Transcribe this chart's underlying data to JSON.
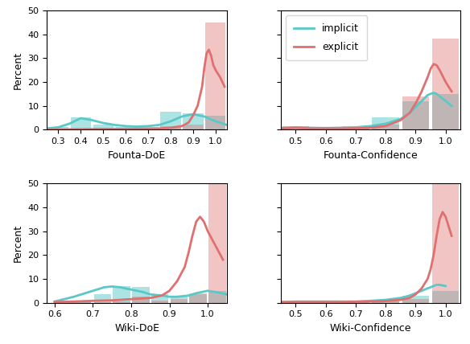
{
  "panels": [
    {
      "name": "Founta-DoE",
      "xlim": [
        0.25,
        1.05
      ],
      "xticks": [
        0.3,
        0.4,
        0.5,
        0.6,
        0.7,
        0.8,
        0.9,
        1.0
      ],
      "implicit_hist_edges": [
        0.25,
        0.35,
        0.45,
        0.55,
        0.65,
        0.75,
        0.85,
        0.95,
        1.05
      ],
      "implicit_hist_vals": [
        1.0,
        5.0,
        2.0,
        1.0,
        1.0,
        7.5,
        7.0,
        6.0
      ],
      "explicit_hist_edges": [
        0.25,
        0.35,
        0.45,
        0.55,
        0.65,
        0.75,
        0.85,
        0.95,
        1.05
      ],
      "explicit_hist_vals": [
        0.2,
        0.5,
        0.3,
        0.3,
        0.4,
        1.5,
        2.0,
        45.0
      ],
      "implicit_kde_x": [
        0.25,
        0.3,
        0.35,
        0.4,
        0.45,
        0.5,
        0.55,
        0.6,
        0.65,
        0.7,
        0.75,
        0.8,
        0.85,
        0.9,
        0.95,
        1.0,
        1.05
      ],
      "implicit_kde_y": [
        0.5,
        1.0,
        2.5,
        4.8,
        4.0,
        2.8,
        2.0,
        1.5,
        1.3,
        1.5,
        2.0,
        3.5,
        5.5,
        6.5,
        5.5,
        3.5,
        2.0
      ],
      "explicit_kde_x": [
        0.25,
        0.3,
        0.4,
        0.5,
        0.6,
        0.7,
        0.75,
        0.8,
        0.85,
        0.88,
        0.9,
        0.92,
        0.94,
        0.95,
        0.96,
        0.97,
        0.98,
        0.99,
        1.0,
        1.02,
        1.04
      ],
      "explicit_kde_y": [
        0.0,
        0.1,
        0.2,
        0.3,
        0.3,
        0.4,
        0.5,
        0.8,
        1.5,
        3.0,
        6.0,
        10.0,
        18.0,
        26.0,
        32.0,
        33.5,
        31.0,
        27.0,
        25.0,
        22.0,
        18.0
      ],
      "ylim": [
        0,
        50
      ],
      "yticks": [
        0,
        10,
        20,
        30,
        40,
        50
      ]
    },
    {
      "name": "Founta-Confidence",
      "xlim": [
        0.45,
        1.05
      ],
      "xticks": [
        0.5,
        0.6,
        0.7,
        0.8,
        0.9,
        1.0
      ],
      "implicit_hist_edges": [
        0.45,
        0.55,
        0.65,
        0.75,
        0.85,
        0.95,
        1.05
      ],
      "implicit_hist_vals": [
        1.5,
        1.0,
        1.5,
        5.0,
        12.0,
        15.0
      ],
      "explicit_hist_edges": [
        0.45,
        0.55,
        0.65,
        0.75,
        0.85,
        0.95,
        1.05
      ],
      "explicit_hist_vals": [
        1.5,
        0.8,
        1.0,
        2.0,
        14.0,
        38.0
      ],
      "implicit_kde_x": [
        0.45,
        0.5,
        0.55,
        0.6,
        0.65,
        0.7,
        0.75,
        0.8,
        0.85,
        0.88,
        0.9,
        0.92,
        0.94,
        0.96,
        0.97,
        0.98,
        1.0,
        1.02
      ],
      "implicit_kde_y": [
        0.5,
        1.0,
        0.8,
        0.7,
        0.8,
        1.0,
        1.5,
        2.5,
        4.5,
        7.0,
        9.5,
        12.0,
        14.5,
        15.5,
        15.0,
        14.0,
        12.0,
        10.0
      ],
      "explicit_kde_x": [
        0.45,
        0.5,
        0.55,
        0.6,
        0.65,
        0.7,
        0.75,
        0.8,
        0.82,
        0.85,
        0.88,
        0.9,
        0.92,
        0.94,
        0.95,
        0.96,
        0.97,
        0.98,
        0.99,
        1.0,
        1.02
      ],
      "explicit_kde_y": [
        0.5,
        0.8,
        0.5,
        0.5,
        0.5,
        0.6,
        0.8,
        1.5,
        2.5,
        4.0,
        7.0,
        11.0,
        16.0,
        22.0,
        25.5,
        27.5,
        27.0,
        25.0,
        22.5,
        20.0,
        16.0
      ],
      "ylim": [
        0,
        50
      ],
      "yticks": [
        0,
        10,
        20,
        30,
        40,
        50
      ]
    },
    {
      "name": "Wiki-DoE",
      "xlim": [
        0.58,
        1.05
      ],
      "xticks": [
        0.6,
        0.7,
        0.8,
        0.9,
        1.0
      ],
      "implicit_hist_edges": [
        0.6,
        0.7,
        0.75,
        0.8,
        0.85,
        0.9,
        0.95,
        1.0,
        1.05
      ],
      "implicit_hist_vals": [
        1.0,
        3.5,
        7.0,
        6.5,
        3.5,
        2.5,
        3.5,
        5.0
      ],
      "explicit_hist_edges": [
        0.6,
        0.7,
        0.75,
        0.8,
        0.85,
        0.9,
        0.95,
        1.0,
        1.05
      ],
      "explicit_hist_vals": [
        0.5,
        0.3,
        0.5,
        2.5,
        1.0,
        1.5,
        4.0,
        50.0
      ],
      "implicit_kde_x": [
        0.6,
        0.65,
        0.7,
        0.73,
        0.75,
        0.77,
        0.8,
        0.83,
        0.85,
        0.88,
        0.9,
        0.92,
        0.95,
        0.97,
        1.0,
        1.02,
        1.05
      ],
      "implicit_kde_y": [
        0.5,
        2.5,
        5.0,
        6.5,
        6.8,
        6.5,
        5.5,
        4.5,
        3.5,
        3.0,
        2.5,
        2.5,
        3.0,
        4.0,
        5.0,
        4.5,
        3.5
      ],
      "explicit_kde_x": [
        0.6,
        0.65,
        0.7,
        0.75,
        0.8,
        0.85,
        0.88,
        0.9,
        0.92,
        0.94,
        0.95,
        0.96,
        0.97,
        0.98,
        0.99,
        1.0,
        1.02,
        1.04
      ],
      "explicit_kde_y": [
        0.3,
        0.5,
        0.8,
        1.0,
        1.5,
        2.0,
        3.0,
        5.0,
        9.0,
        15.0,
        21.0,
        28.0,
        34.0,
        36.0,
        34.0,
        30.0,
        24.0,
        18.0
      ],
      "ylim": [
        0,
        50
      ],
      "yticks": [
        0,
        10,
        20,
        30,
        40,
        50
      ]
    },
    {
      "name": "Wiki-Confidence",
      "xlim": [
        0.45,
        1.05
      ],
      "xticks": [
        0.5,
        0.6,
        0.7,
        0.8,
        0.9,
        1.0
      ],
      "implicit_hist_edges": [
        0.45,
        0.55,
        0.65,
        0.75,
        0.85,
        0.95,
        1.05
      ],
      "implicit_hist_vals": [
        0.5,
        0.5,
        0.5,
        1.0,
        3.0,
        5.0
      ],
      "explicit_hist_edges": [
        0.45,
        0.55,
        0.65,
        0.75,
        0.85,
        0.95,
        1.05
      ],
      "explicit_hist_vals": [
        0.5,
        0.3,
        0.3,
        0.5,
        1.5,
        50.0
      ],
      "implicit_kde_x": [
        0.45,
        0.5,
        0.55,
        0.6,
        0.65,
        0.7,
        0.75,
        0.8,
        0.85,
        0.88,
        0.9,
        0.92,
        0.94,
        0.96,
        0.97,
        0.98,
        1.0
      ],
      "implicit_kde_y": [
        0.2,
        0.5,
        0.5,
        0.5,
        0.5,
        0.5,
        0.8,
        1.2,
        2.0,
        3.0,
        4.0,
        5.0,
        6.0,
        7.0,
        7.5,
        7.5,
        7.0
      ],
      "explicit_kde_x": [
        0.45,
        0.5,
        0.55,
        0.6,
        0.65,
        0.7,
        0.75,
        0.8,
        0.85,
        0.88,
        0.9,
        0.92,
        0.94,
        0.95,
        0.96,
        0.97,
        0.98,
        0.99,
        1.0,
        1.02
      ],
      "explicit_kde_y": [
        0.3,
        0.3,
        0.3,
        0.3,
        0.3,
        0.4,
        0.5,
        0.7,
        1.2,
        2.0,
        3.5,
        6.0,
        10.0,
        14.0,
        20.0,
        28.0,
        35.0,
        38.0,
        36.0,
        28.0
      ],
      "ylim": [
        0,
        50
      ],
      "yticks": [
        0,
        10,
        20,
        30,
        40,
        50
      ]
    }
  ],
  "implicit_color": "#5BC8C8",
  "explicit_color": "#E07070",
  "implicit_alpha": 0.5,
  "explicit_alpha": 0.4,
  "implicit_line_color": "#5BC8C8",
  "explicit_line_color": "#E07070",
  "ylabel": "Percent",
  "legend_labels": [
    "implicit",
    "explicit"
  ],
  "figsize": [
    5.84,
    4.28
  ],
  "dpi": 100,
  "hspace": 0.45,
  "wspace": 0.3
}
